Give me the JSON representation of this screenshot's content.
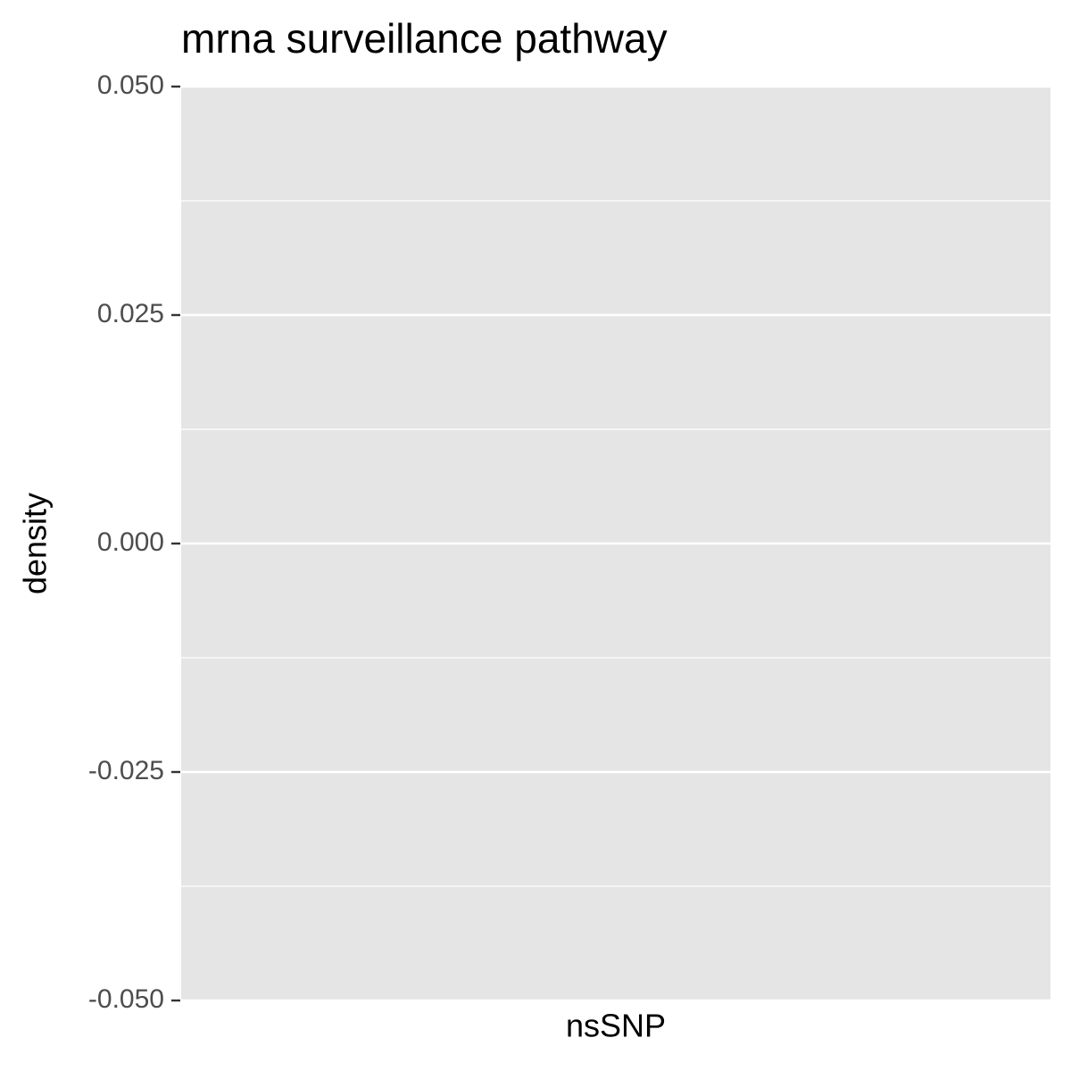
{
  "chart_data": {
    "type": "density",
    "title": "mrna surveillance pathway",
    "x_label": "nsSNP",
    "y_label": "density",
    "ylim": [
      -0.05,
      0.05
    ],
    "yticks": [
      {
        "value": 0.05,
        "label": "0.050"
      },
      {
        "value": 0.025,
        "label": "0.025"
      },
      {
        "value": 0,
        "label": "0.000"
      },
      {
        "value": -0.025,
        "label": "-0.025"
      },
      {
        "value": -0.05,
        "label": "-0.050"
      }
    ],
    "minor_yticks": [
      0.0375,
      0.0125,
      -0.0125,
      -0.0375
    ],
    "grid": true,
    "panel_color": "#e5e5e5",
    "grid_color": "#ffffff"
  }
}
